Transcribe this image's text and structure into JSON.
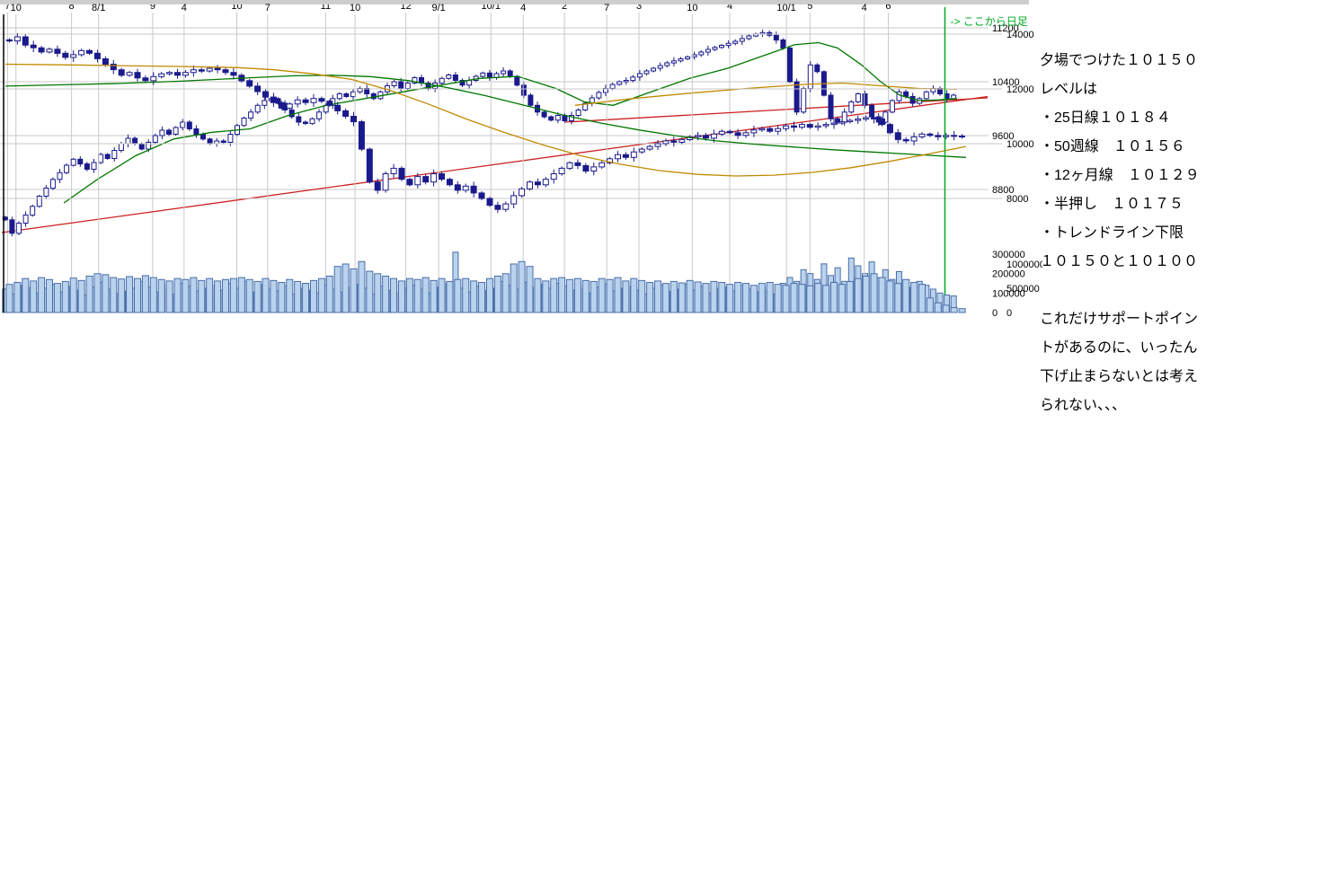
{
  "note": {
    "lines": [
      "夕場でつけた１０１５０",
      "レベルは",
      "・25日線１０１８４",
      "・50週線　１０１５６",
      "・12ヶ月線　１０１２９",
      "・半押し　１０１７５",
      "・トレンドライン下限",
      "１０１５０と１０１００",
      "",
      "これだけサポートポイン",
      "トがあるのに、いったん",
      "下げ止まらないとは考え",
      "られない、、、"
    ]
  },
  "colors": {
    "candle": "#1a1a8c",
    "candle_up_fill": "#ffffff",
    "volume_fill": "#b9d3ee",
    "volume_stroke": "#4a6da8",
    "ma_green": "#007700",
    "ma_orange": "#c08a00",
    "trend_red": "#cc2222",
    "grid": "#c9c9c9",
    "axis_text": "#000000",
    "marker_green": "#00aa22",
    "divider": "#cdcdcd"
  },
  "chart_data": [
    {
      "id": "daily",
      "type": "candlestick",
      "x_labels": [
        {
          "pos": 0.006,
          "label": "7"
        },
        {
          "pos": 0.073,
          "label": "8"
        },
        {
          "pos": 0.158,
          "label": "9"
        },
        {
          "pos": 0.246,
          "label": "10"
        },
        {
          "pos": 0.339,
          "label": "11"
        },
        {
          "pos": 0.423,
          "label": "12"
        },
        {
          "pos": 0.512,
          "label": "10/1"
        },
        {
          "pos": 0.589,
          "label": "2"
        },
        {
          "pos": 0.667,
          "label": "3"
        },
        {
          "pos": 0.762,
          "label": "4"
        },
        {
          "pos": 0.846,
          "label": "5"
        },
        {
          "pos": 0.928,
          "label": "6"
        }
      ],
      "price_ticks": [
        11200,
        10400,
        9600,
        8800
      ],
      "price_range": [
        8100,
        11600
      ],
      "volume_ticks": [
        300000,
        200000,
        100000,
        0
      ],
      "volume_range": [
        0,
        350000
      ],
      "close": [
        8350,
        8150,
        8300,
        8420,
        8550,
        8700,
        8820,
        8950,
        9050,
        9160,
        9250,
        9180,
        9100,
        9200,
        9320,
        9260,
        9380,
        9480,
        9560,
        9480,
        9400,
        9500,
        9600,
        9680,
        9620,
        9720,
        9800,
        9700,
        9620,
        9550,
        9480,
        9520,
        9500,
        9620,
        9750,
        9860,
        9950,
        10050,
        10120,
        10150,
        10080,
        9980,
        9880,
        9800,
        9780,
        9850,
        9950,
        10050,
        10150,
        10220,
        10180,
        10250,
        10300,
        10220,
        10150,
        10250,
        10340,
        10400,
        10300,
        10380,
        10460,
        10380,
        10300,
        10380,
        10450,
        10500,
        10420,
        10350,
        10420,
        10480,
        10530,
        10460,
        10520,
        10560,
        10480,
        10350,
        10200,
        10050,
        9950,
        9880,
        9830,
        9900,
        9820,
        9900,
        9980,
        10080,
        10160,
        10240,
        10300,
        10360,
        10400,
        10420,
        10470,
        10520,
        10560,
        10600,
        10640,
        10680,
        10710,
        10740,
        10770,
        10800,
        10840,
        10880,
        10910,
        10940,
        10970,
        11000,
        11040,
        11080,
        11110,
        11130,
        11090,
        11020,
        10900,
        10400,
        9950,
        10300,
        10650,
        10550,
        10200,
        9850,
        9800,
        9950,
        10100,
        10220,
        10050,
        9880,
        9800,
        9950,
        10120,
        10250,
        10180,
        10080,
        10150,
        10250,
        10300,
        10220,
        10150,
        10200
      ],
      "volume": [
        120000,
        95000,
        140000,
        110000,
        130000,
        100000,
        125000,
        145000,
        105000,
        135000,
        150000,
        115000,
        90000,
        130000,
        155000,
        120000,
        100000,
        140000,
        110000,
        125000,
        160000,
        130000,
        105000,
        145000,
        120000,
        95000,
        150000,
        135000,
        110000,
        125000,
        100000,
        140000,
        115000,
        150000,
        125000,
        160000,
        105000,
        130000,
        145000,
        120000,
        110000,
        135000,
        95000,
        125000,
        150000,
        115000,
        100000,
        140000,
        120000,
        105000,
        130000,
        110000,
        145000,
        125000,
        95000,
        135000,
        115000,
        150000,
        105000,
        125000,
        140000,
        120000,
        100000,
        130000,
        110000,
        150000,
        310000,
        125000,
        105000,
        135000,
        115000,
        145000,
        125000,
        160000,
        140000,
        120000,
        155000,
        130000,
        110000,
        145000,
        125000,
        150000,
        135000,
        115000,
        140000,
        120000,
        100000,
        130000,
        145000,
        110000,
        125000,
        105000,
        135000,
        115000,
        95000,
        125000,
        140000,
        110000,
        130000,
        120000,
        145000,
        115000,
        135000,
        100000,
        125000,
        150000,
        130000,
        110000,
        140000,
        120000,
        105000,
        130000,
        115000,
        95000,
        150000,
        180000,
        160000,
        220000,
        200000,
        170000,
        250000,
        190000,
        230000,
        160000,
        280000,
        240000,
        200000,
        260000,
        180000,
        220000,
        170000,
        210000,
        150000,
        130000,
        160000,
        140000,
        120000,
        100000,
        90000,
        85000
      ],
      "ma_green": {
        "points": [
          [
            0.065,
            8600
          ],
          [
            0.1,
            8950
          ],
          [
            0.14,
            9300
          ],
          [
            0.18,
            9550
          ],
          [
            0.22,
            9650
          ],
          [
            0.26,
            9700
          ],
          [
            0.3,
            9900
          ],
          [
            0.34,
            10050
          ],
          [
            0.38,
            10150
          ],
          [
            0.42,
            10250
          ],
          [
            0.46,
            10350
          ],
          [
            0.5,
            10450
          ],
          [
            0.54,
            10480
          ],
          [
            0.58,
            10300
          ],
          [
            0.61,
            10100
          ],
          [
            0.64,
            10050
          ],
          [
            0.68,
            10250
          ],
          [
            0.72,
            10450
          ],
          [
            0.76,
            10600
          ],
          [
            0.8,
            10800
          ],
          [
            0.83,
            10950
          ],
          [
            0.855,
            10980
          ],
          [
            0.875,
            10900
          ],
          [
            0.9,
            10650
          ],
          [
            0.92,
            10400
          ],
          [
            0.94,
            10200
          ],
          [
            0.96,
            10120
          ],
          [
            0.98,
            10130
          ],
          [
            1.0,
            10150
          ]
        ]
      },
      "ma_orange": {
        "points": [
          [
            0.6,
            10050
          ],
          [
            0.66,
            10150
          ],
          [
            0.72,
            10230
          ],
          [
            0.78,
            10300
          ],
          [
            0.84,
            10360
          ],
          [
            0.88,
            10380
          ],
          [
            0.92,
            10340
          ],
          [
            0.96,
            10300
          ],
          [
            1.0,
            10290
          ]
        ]
      },
      "trend_lines": [
        {
          "from": [
            0,
            8160
          ],
          "to": [
            1.032,
            10180
          ]
        },
        {
          "from": [
            0.59,
            9800
          ],
          "to": [
            1.032,
            10160
          ]
        }
      ]
    },
    {
      "id": "weekly",
      "type": "candlestick",
      "x_labels": [
        {
          "pos": 0.011,
          "label": "10"
        },
        {
          "pos": 0.097,
          "label": "8/1"
        },
        {
          "pos": 0.186,
          "label": "4"
        },
        {
          "pos": 0.273,
          "label": "7"
        },
        {
          "pos": 0.364,
          "label": "10"
        },
        {
          "pos": 0.451,
          "label": "9/1"
        },
        {
          "pos": 0.539,
          "label": "4"
        },
        {
          "pos": 0.626,
          "label": "7"
        },
        {
          "pos": 0.715,
          "label": "10"
        },
        {
          "pos": 0.813,
          "label": "10/1"
        },
        {
          "pos": 0.894,
          "label": "4"
        }
      ],
      "price_ticks": [
        14000,
        12000,
        10000,
        8000
      ],
      "price_range": [
        7500,
        15100
      ],
      "volume_ticks": [
        1000000,
        500000,
        0
      ],
      "volume_range": [
        0,
        1100000
      ],
      "marker": {
        "pos": 0.978,
        "label": "-> ここから日足"
      },
      "close": [
        13750,
        13900,
        13600,
        13500,
        13350,
        13450,
        13300,
        13150,
        13250,
        13400,
        13300,
        13100,
        12900,
        12700,
        12500,
        12600,
        12400,
        12300,
        12450,
        12550,
        12600,
        12500,
        12600,
        12700,
        12650,
        12750,
        12700,
        12600,
        12500,
        12300,
        12100,
        11900,
        11700,
        11500,
        11300,
        11450,
        11600,
        11500,
        11650,
        11550,
        11400,
        11200,
        11000,
        10800,
        9800,
        8600,
        8300,
        8900,
        9100,
        8700,
        8500,
        8800,
        8600,
        8900,
        8700,
        8500,
        8300,
        8450,
        8200,
        8000,
        7750,
        7600,
        7800,
        8100,
        8350,
        8600,
        8500,
        8700,
        8900,
        9100,
        9300,
        9200,
        9000,
        9150,
        9300,
        9450,
        9600,
        9500,
        9700,
        9800,
        9900,
        10000,
        10100,
        10050,
        10150,
        10250,
        10300,
        10200,
        10350,
        10450,
        10400,
        10300,
        10400,
        10500,
        10550,
        10450,
        10550,
        10650,
        10600,
        10700,
        10600,
        10650,
        10700,
        10750,
        10800,
        10850,
        10900,
        10950,
        10900,
        10700,
        10400,
        10150,
        10100,
        10250,
        10350,
        10300,
        10250,
        10300,
        10280,
        10250
      ],
      "volume": [
        580000,
        620000,
        700000,
        650000,
        720000,
        680000,
        600000,
        640000,
        710000,
        660000,
        750000,
        800000,
        780000,
        720000,
        690000,
        740000,
        700000,
        760000,
        720000,
        680000,
        650000,
        700000,
        680000,
        720000,
        660000,
        700000,
        650000,
        680000,
        700000,
        720000,
        680000,
        640000,
        700000,
        660000,
        620000,
        680000,
        640000,
        600000,
        660000,
        700000,
        750000,
        950000,
        1000000,
        900000,
        1050000,
        850000,
        800000,
        750000,
        700000,
        650000,
        700000,
        680000,
        720000,
        660000,
        700000,
        640000,
        680000,
        700000,
        650000,
        620000,
        700000,
        750000,
        800000,
        1000000,
        1050000,
        950000,
        700000,
        650000,
        700000,
        720000,
        680000,
        700000,
        660000,
        640000,
        700000,
        680000,
        720000,
        650000,
        700000,
        660000,
        620000,
        650000,
        600000,
        640000,
        610000,
        660000,
        630000,
        600000,
        640000,
        620000,
        580000,
        620000,
        600000,
        560000,
        600000,
        620000,
        580000,
        560000,
        600000,
        580000,
        550000,
        600000,
        560000,
        620000,
        580000,
        640000,
        700000,
        750000,
        800000,
        720000,
        650000,
        600000,
        680000,
        620000,
        580000,
        300000,
        200000,
        150000,
        100000,
        80000
      ],
      "ma_green": {
        "points": [
          [
            0,
            12100
          ],
          [
            0.06,
            12150
          ],
          [
            0.12,
            12200
          ],
          [
            0.18,
            12280
          ],
          [
            0.24,
            12380
          ],
          [
            0.3,
            12480
          ],
          [
            0.34,
            12500
          ],
          [
            0.38,
            12450
          ],
          [
            0.42,
            12300
          ],
          [
            0.46,
            12050
          ],
          [
            0.5,
            11750
          ],
          [
            0.54,
            11400
          ],
          [
            0.58,
            11050
          ],
          [
            0.62,
            10750
          ],
          [
            0.66,
            10500
          ],
          [
            0.7,
            10280
          ],
          [
            0.74,
            10100
          ],
          [
            0.78,
            9980
          ],
          [
            0.82,
            9880
          ],
          [
            0.86,
            9780
          ],
          [
            0.9,
            9700
          ],
          [
            0.94,
            9620
          ],
          [
            1.0,
            9500
          ]
        ]
      },
      "ma_orange": {
        "points": [
          [
            0,
            12900
          ],
          [
            0.06,
            12880
          ],
          [
            0.12,
            12850
          ],
          [
            0.18,
            12820
          ],
          [
            0.24,
            12780
          ],
          [
            0.28,
            12700
          ],
          [
            0.32,
            12550
          ],
          [
            0.36,
            12350
          ],
          [
            0.4,
            11950
          ],
          [
            0.44,
            11450
          ],
          [
            0.48,
            10900
          ],
          [
            0.52,
            10400
          ],
          [
            0.56,
            9950
          ],
          [
            0.6,
            9550
          ],
          [
            0.64,
            9250
          ],
          [
            0.68,
            9020
          ],
          [
            0.72,
            8880
          ],
          [
            0.76,
            8820
          ],
          [
            0.8,
            8850
          ],
          [
            0.84,
            8950
          ],
          [
            0.88,
            9120
          ],
          [
            0.92,
            9350
          ],
          [
            0.96,
            9620
          ],
          [
            1.0,
            9900
          ]
        ]
      }
    }
  ]
}
